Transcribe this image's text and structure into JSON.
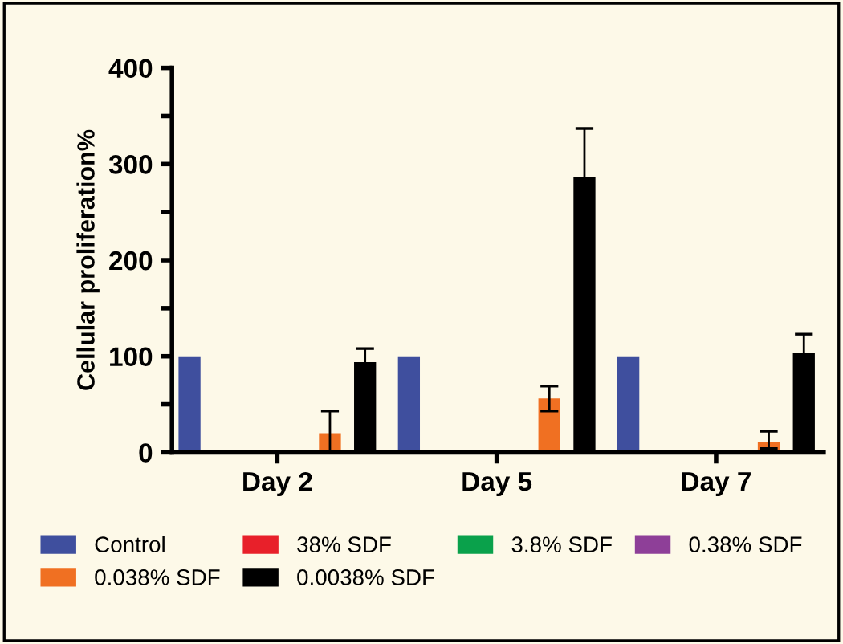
{
  "chart_data": {
    "type": "bar",
    "ylabel": "Cellular proliferation%",
    "categories": [
      "Day 2",
      "Day 5",
      "Day 7"
    ],
    "series": [
      {
        "name": "Control",
        "color": "#3f4f9e",
        "values": [
          100,
          100,
          100
        ]
      },
      {
        "name": "38% SDF",
        "color": "#e8202a",
        "values": [
          0,
          0,
          0
        ]
      },
      {
        "name": "3.8% SDF",
        "color": "#0aa14b",
        "values": [
          0,
          0,
          0
        ]
      },
      {
        "name": "0.38% SDF",
        "color": "#8e3f98",
        "values": [
          0,
          0,
          0
        ]
      },
      {
        "name": "0.038% SDF",
        "color": "#f07022",
        "values": [
          20,
          56,
          11
        ],
        "errors": [
          23,
          13,
          [
            4,
            22
          ]
        ]
      },
      {
        "name": "0.0038% SDF",
        "color": "#000000",
        "values": [
          94,
          286,
          103
        ],
        "errors": [
          14,
          51,
          20
        ]
      }
    ],
    "ylim": [
      0,
      400
    ],
    "yticks": [
      0,
      {
        "value": 50,
        "label": null
      },
      100,
      {
        "value": 150,
        "label": null
      },
      200,
      {
        "value": 250,
        "label": null
      },
      300,
      {
        "value": 350,
        "label": null
      },
      400
    ],
    "grid": false,
    "legend": "bottom"
  }
}
